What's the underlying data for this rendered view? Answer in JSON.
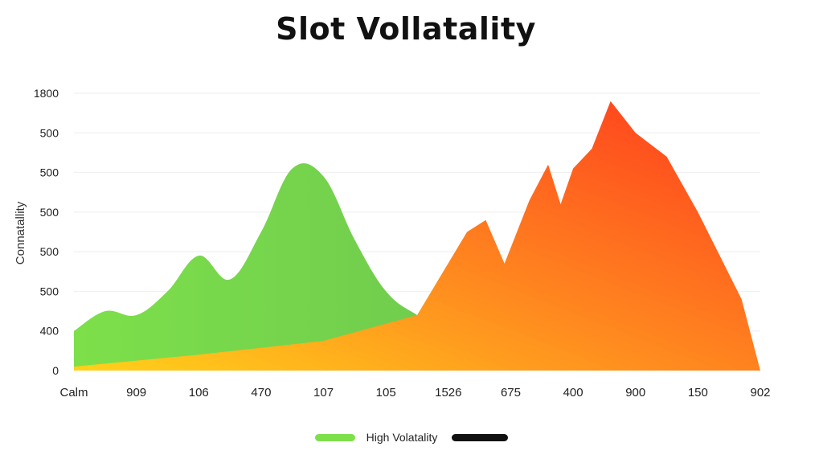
{
  "chart_data": {
    "type": "area",
    "title": "Slot Vollatality",
    "xlabel": "",
    "ylabel": "Connatallity",
    "y_tick_labels": [
      "0",
      "400",
      "500",
      "500",
      "500",
      "500",
      "500",
      "1800"
    ],
    "x_tick_labels": [
      "Calm",
      "909",
      "106",
      "470",
      "107",
      "105",
      "1526",
      "675",
      "400",
      "900",
      "150",
      "902"
    ],
    "ylim": [
      0,
      8
    ],
    "grid": true,
    "series": [
      {
        "name": "High Volatality",
        "color_start": "#7de04a",
        "color_end": "#6fca4e",
        "x": [
          0,
          0.5,
          1,
          1.5,
          2,
          2.5,
          3,
          3.5,
          4,
          4.5,
          5,
          5.5,
          6,
          6.3
        ],
        "values": [
          1.0,
          1.5,
          1.4,
          2.0,
          2.9,
          2.3,
          3.5,
          5.1,
          4.9,
          3.3,
          2.0,
          1.4,
          1.0,
          0.6
        ]
      },
      {
        "name": "",
        "color_start": "#ffd21a",
        "color_end": "#ff3a1e",
        "x": [
          0,
          2,
          4,
          5.5,
          6.3,
          6.6,
          6.9,
          7.3,
          7.6,
          7.8,
          8.0,
          8.3,
          8.6,
          9.0,
          9.5,
          10,
          10.7,
          11
        ],
        "values": [
          0.1,
          0.4,
          0.75,
          1.4,
          3.5,
          3.8,
          2.7,
          4.3,
          5.2,
          4.2,
          5.1,
          5.6,
          6.8,
          6.0,
          5.4,
          4.0,
          1.8,
          0
        ]
      }
    ],
    "legend": {
      "position": "bottom-center",
      "entries": [
        {
          "label": "High Volatality",
          "color": "#7de04a"
        },
        {
          "label": "",
          "color": "#111111"
        }
      ]
    }
  }
}
